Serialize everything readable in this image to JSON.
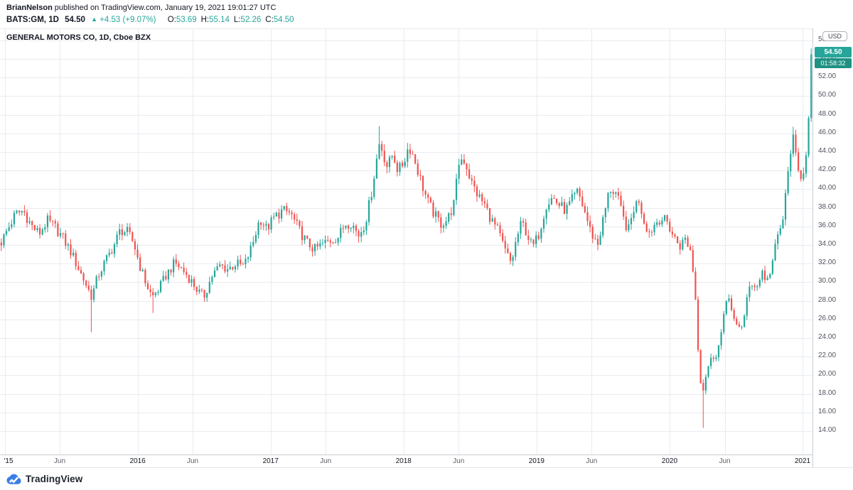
{
  "header": {
    "author": "BrianNelson",
    "published_text": "published on TradingView.com, January 19, 2021 19:01:27 UTC",
    "symbol_text": "BATS:GM, 1D",
    "last_price": "54.50",
    "up_arrow": "▲",
    "change_text": "+4.53 (+9.07%)",
    "ohlc": [
      {
        "label": "O:",
        "value": "53.69"
      },
      {
        "label": "H:",
        "value": "55.14"
      },
      {
        "label": "L:",
        "value": "52.26"
      },
      {
        "label": "C:",
        "value": "54.50"
      }
    ]
  },
  "chart": {
    "legend": "GENERAL MOTORS CO, 1D, Cboe BZX",
    "currency_chip": "USD",
    "price_badge": "54.50",
    "countdown_badge": "01:58:32"
  },
  "footer": {
    "brand": "TradingView"
  },
  "chart_data": {
    "type": "candlestick",
    "title": "GENERAL MOTORS CO, 1D, Cboe BZX",
    "symbol": "BATS:GM",
    "interval": "1D",
    "currency": "USD",
    "last_price": 54.5,
    "countdown": "01:58:32",
    "x_range": {
      "min": 2014.965,
      "max": 2021.075
    },
    "y_range": {
      "min": 11.4,
      "max": 57.2
    },
    "y_ticks": [
      14,
      16,
      18,
      20,
      22,
      24,
      26,
      28,
      30,
      32,
      34,
      36,
      38,
      40,
      42,
      44,
      46,
      48,
      50,
      52,
      54,
      56
    ],
    "x_ticks": [
      {
        "t": 2015.0,
        "label": "'15",
        "major": true
      },
      {
        "t": 2015.414,
        "label": "Jun",
        "major": false
      },
      {
        "t": 2016.0,
        "label": "2016",
        "major": true
      },
      {
        "t": 2016.414,
        "label": "Jun",
        "major": false
      },
      {
        "t": 2017.0,
        "label": "2017",
        "major": true
      },
      {
        "t": 2017.414,
        "label": "Jun",
        "major": false
      },
      {
        "t": 2018.0,
        "label": "2018",
        "major": true
      },
      {
        "t": 2018.414,
        "label": "Jun",
        "major": false
      },
      {
        "t": 2019.0,
        "label": "2019",
        "major": true
      },
      {
        "t": 2019.414,
        "label": "Jun",
        "major": false
      },
      {
        "t": 2020.0,
        "label": "2020",
        "major": true
      },
      {
        "t": 2020.415,
        "label": "Jun",
        "major": false
      },
      {
        "t": 2021.0,
        "label": "2021",
        "major": true
      }
    ],
    "bar_count": 316,
    "anchor_points": [
      [
        2014.97,
        34.2
      ],
      [
        2015.02,
        35.6
      ],
      [
        2015.08,
        37.3
      ],
      [
        2015.14,
        37.7
      ],
      [
        2015.2,
        36.1
      ],
      [
        2015.26,
        35.2
      ],
      [
        2015.32,
        36.6
      ],
      [
        2015.38,
        35.9
      ],
      [
        2015.44,
        34.7
      ],
      [
        2015.5,
        33.2
      ],
      [
        2015.56,
        31.3
      ],
      [
        2015.62,
        29.5
      ],
      [
        2015.655,
        28.4
      ],
      [
        2015.7,
        30.6
      ],
      [
        2015.76,
        32.3
      ],
      [
        2015.82,
        33.9
      ],
      [
        2015.87,
        35.6
      ],
      [
        2015.92,
        35.4
      ],
      [
        2015.97,
        34.2
      ],
      [
        2016.02,
        31.6
      ],
      [
        2016.07,
        29.6
      ],
      [
        2016.11,
        28.4
      ],
      [
        2016.16,
        29.3
      ],
      [
        2016.22,
        30.9
      ],
      [
        2016.28,
        32.1
      ],
      [
        2016.34,
        31.3
      ],
      [
        2016.4,
        30.2
      ],
      [
        2016.46,
        28.9
      ],
      [
        2016.5,
        28.5
      ],
      [
        2016.56,
        30.7
      ],
      [
        2016.62,
        31.8
      ],
      [
        2016.68,
        31.4
      ],
      [
        2016.74,
        32.0
      ],
      [
        2016.8,
        31.7
      ],
      [
        2016.86,
        33.9
      ],
      [
        2016.92,
        36.9
      ],
      [
        2016.97,
        35.7
      ],
      [
        2017.03,
        37.0
      ],
      [
        2017.09,
        37.7
      ],
      [
        2017.15,
        37.4
      ],
      [
        2017.21,
        35.7
      ],
      [
        2017.27,
        34.3
      ],
      [
        2017.33,
        33.5
      ],
      [
        2017.39,
        34.1
      ],
      [
        2017.45,
        34.5
      ],
      [
        2017.51,
        34.9
      ],
      [
        2017.56,
        36.3
      ],
      [
        2017.61,
        36.4
      ],
      [
        2017.66,
        35.0
      ],
      [
        2017.71,
        36.3
      ],
      [
        2017.75,
        38.9
      ],
      [
        2017.79,
        42.6
      ],
      [
        2017.82,
        45.1
      ],
      [
        2017.85,
        43.7
      ],
      [
        2017.88,
        42.3
      ],
      [
        2017.92,
        43.9
      ],
      [
        2017.96,
        41.9
      ],
      [
        2018.0,
        42.9
      ],
      [
        2018.04,
        44.7
      ],
      [
        2018.08,
        43.3
      ],
      [
        2018.13,
        40.9
      ],
      [
        2018.18,
        38.7
      ],
      [
        2018.23,
        37.3
      ],
      [
        2018.28,
        36.3
      ],
      [
        2018.33,
        36.7
      ],
      [
        2018.38,
        38.5
      ],
      [
        2018.42,
        43.3
      ],
      [
        2018.46,
        43.1
      ],
      [
        2018.51,
        40.7
      ],
      [
        2018.56,
        39.3
      ],
      [
        2018.61,
        38.3
      ],
      [
        2018.66,
        36.7
      ],
      [
        2018.71,
        35.5
      ],
      [
        2018.76,
        33.5
      ],
      [
        2018.81,
        32.0
      ],
      [
        2018.85,
        34.7
      ],
      [
        2018.89,
        36.5
      ],
      [
        2018.93,
        35.1
      ],
      [
        2018.97,
        33.7
      ],
      [
        2019.02,
        35.3
      ],
      [
        2019.07,
        38.3
      ],
      [
        2019.12,
        39.1
      ],
      [
        2019.17,
        38.3
      ],
      [
        2019.22,
        37.7
      ],
      [
        2019.27,
        38.9
      ],
      [
        2019.31,
        39.7
      ],
      [
        2019.36,
        37.7
      ],
      [
        2019.41,
        35.3
      ],
      [
        2019.46,
        34.1
      ],
      [
        2019.51,
        37.3
      ],
      [
        2019.55,
        40.1
      ],
      [
        2019.6,
        39.5
      ],
      [
        2019.65,
        36.9
      ],
      [
        2019.69,
        35.5
      ],
      [
        2019.73,
        37.9
      ],
      [
        2019.77,
        38.9
      ],
      [
        2019.81,
        36.5
      ],
      [
        2019.85,
        35.3
      ],
      [
        2019.89,
        36.3
      ],
      [
        2019.93,
        36.9
      ],
      [
        2019.98,
        36.5
      ],
      [
        2020.03,
        34.9
      ],
      [
        2020.08,
        33.9
      ],
      [
        2020.12,
        34.7
      ],
      [
        2020.16,
        33.3
      ],
      [
        2020.19,
        29.6
      ],
      [
        2020.22,
        21.6
      ],
      [
        2020.245,
        17.9
      ],
      [
        2020.28,
        20.6
      ],
      [
        2020.32,
        21.9
      ],
      [
        2020.36,
        22.5
      ],
      [
        2020.4,
        25.3
      ],
      [
        2020.44,
        29.3
      ],
      [
        2020.475,
        26.1
      ],
      [
        2020.51,
        24.9
      ],
      [
        2020.55,
        25.5
      ],
      [
        2020.59,
        28.9
      ],
      [
        2020.63,
        29.7
      ],
      [
        2020.67,
        29.9
      ],
      [
        2020.7,
        31.3
      ],
      [
        2020.73,
        29.9
      ],
      [
        2020.77,
        31.9
      ],
      [
        2020.81,
        34.7
      ],
      [
        2020.85,
        36.5
      ],
      [
        2020.88,
        40.1
      ],
      [
        2020.91,
        44.3
      ],
      [
        2020.925,
        45.7
      ],
      [
        2020.95,
        43.3
      ],
      [
        2020.97,
        41.7
      ],
      [
        2021.0,
        41.5
      ],
      [
        2021.02,
        43.1
      ],
      [
        2021.045,
        47.1
      ],
      [
        2021.065,
        52.0
      ]
    ],
    "wick_events": [
      {
        "t": 2015.655,
        "type": "low",
        "price": 24.62
      },
      {
        "t": 2016.11,
        "type": "low",
        "price": 26.69
      },
      {
        "t": 2017.82,
        "type": "high",
        "price": 46.76
      },
      {
        "t": 2020.245,
        "type": "low",
        "price": 14.33
      },
      {
        "t": 2020.925,
        "type": "high",
        "price": 46.71
      }
    ],
    "last_bar": {
      "open": 53.69,
      "high": 55.14,
      "low": 52.26,
      "close": 54.5
    },
    "legend_position": "top-left",
    "grid": true,
    "colors": {
      "up": "#26a69a",
      "down": "#ef5350",
      "grid": "#e8ebf0",
      "axis_text": "#50535e",
      "badge": "#26a69a",
      "header_text": "#131722",
      "brand_blue": "#3b7de8"
    }
  }
}
